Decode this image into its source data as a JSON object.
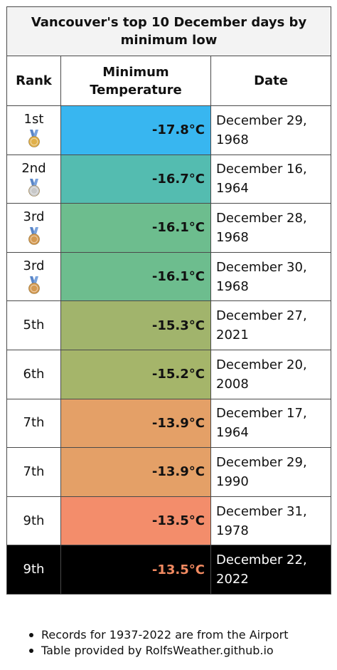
{
  "chart_data": {
    "type": "table",
    "title": "Vancouver's top 10 December days by minimum low",
    "columns": [
      "Rank",
      "Minimum Temperature",
      "Date"
    ],
    "rows": [
      {
        "rank": "1st",
        "medal": "gold-medal-icon",
        "temp": "-17.8°C",
        "value": -17.8,
        "date": "December 29, 1968",
        "color": "#38b6f0"
      },
      {
        "rank": "2nd",
        "medal": "silver-medal-icon",
        "temp": "-16.7°C",
        "value": -16.7,
        "date": "December 16, 1964",
        "color": "#54bcb0"
      },
      {
        "rank": "3rd",
        "medal": "bronze-medal-icon",
        "temp": "-16.1°C",
        "value": -16.1,
        "date": "December 28, 1968",
        "color": "#6dbd8e"
      },
      {
        "rank": "3rd",
        "medal": "bronze-medal-icon",
        "temp": "-16.1°C",
        "value": -16.1,
        "date": "December 30, 1968",
        "color": "#6dbd8e"
      },
      {
        "rank": "5th",
        "medal": "",
        "temp": "-15.3°C",
        "value": -15.3,
        "date": "December 27, 2021",
        "color": "#a1b46c"
      },
      {
        "rank": "6th",
        "medal": "",
        "temp": "-15.2°C",
        "value": -15.2,
        "date": "December 20, 2008",
        "color": "#a5b56a"
      },
      {
        "rank": "7th",
        "medal": "",
        "temp": "-13.9°C",
        "value": -13.9,
        "date": "December 17, 1964",
        "color": "#e4a067"
      },
      {
        "rank": "7th",
        "medal": "",
        "temp": "-13.9°C",
        "value": -13.9,
        "date": "December 29, 1990",
        "color": "#e4a067"
      },
      {
        "rank": "9th",
        "medal": "",
        "temp": "-13.5°C",
        "value": -13.5,
        "date": "December 31, 1978",
        "color": "#f38d6b"
      },
      {
        "rank": "9th",
        "medal": "",
        "temp": "-13.5°C",
        "value": -13.5,
        "date": "December 22, 2022",
        "color": "#000000",
        "highlight": true
      }
    ]
  },
  "notes": [
    "Records for 1937-2022 are from the Airport",
    "Table provided by RolfsWeather.github.io"
  ],
  "colors": {
    "gold": "#e0b04a",
    "silver": "#c8c8c8",
    "bronze": "#d49a52",
    "ribbon": "#5a86c8",
    "highlight_text": "#f28a61"
  }
}
